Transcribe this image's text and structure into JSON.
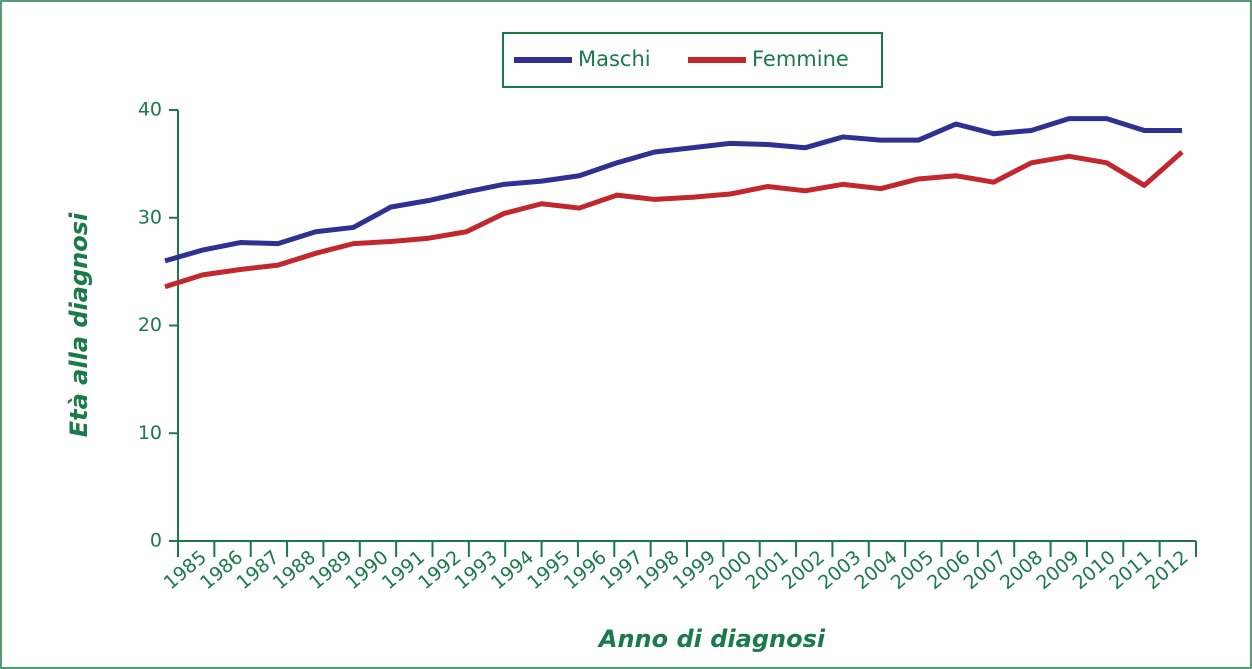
{
  "chart_data": {
    "type": "line",
    "xlabel": "Anno di diagnosi",
    "ylabel": "Età alla diagnosi",
    "categories": [
      "1985",
      "1986",
      "1987",
      "1988",
      "1989",
      "1990",
      "1991",
      "1992",
      "1993",
      "1994",
      "1995",
      "1996",
      "1997",
      "1998",
      "1999",
      "2000",
      "2001",
      "2002",
      "2003",
      "2004",
      "2005",
      "2006",
      "2007",
      "2008",
      "2009",
      "2010",
      "2011",
      "2012"
    ],
    "series": [
      {
        "name": "Maschi",
        "color": "#2e3192",
        "values": [
          26.0,
          27.0,
          27.7,
          27.6,
          28.7,
          29.1,
          31.0,
          31.6,
          32.4,
          33.1,
          33.4,
          33.9,
          35.1,
          36.1,
          36.5,
          36.9,
          36.8,
          36.5,
          37.5,
          37.2,
          37.2,
          38.7,
          37.8,
          38.1,
          39.2,
          39.2,
          38.1,
          38.1
        ]
      },
      {
        "name": "Femmine",
        "color": "#c1272d",
        "values": [
          23.6,
          24.7,
          25.2,
          25.6,
          26.7,
          27.6,
          27.8,
          28.1,
          28.7,
          30.4,
          31.3,
          30.9,
          32.1,
          31.7,
          31.9,
          32.2,
          32.9,
          32.5,
          33.1,
          32.7,
          33.6,
          33.9,
          33.3,
          35.1,
          35.7,
          35.1,
          33.0,
          36.1
        ]
      }
    ],
    "ylim": [
      0,
      40
    ],
    "yticks": [
      0,
      10,
      20,
      30,
      40
    ],
    "legend": "top"
  }
}
